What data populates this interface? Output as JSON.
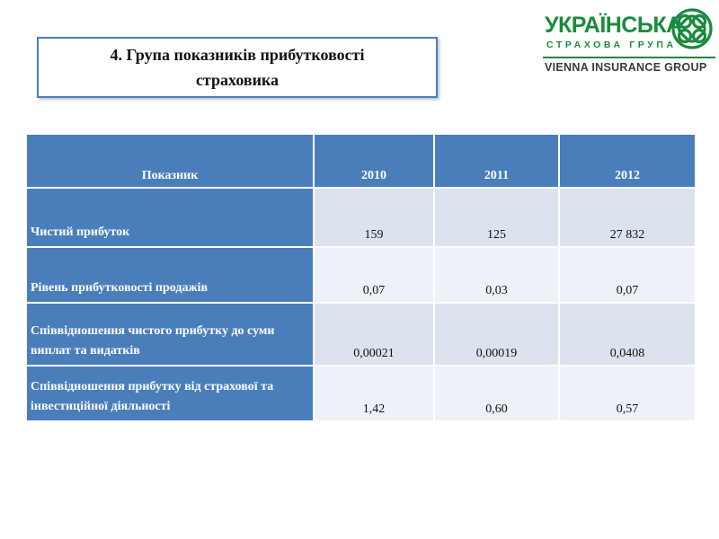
{
  "title": {
    "line1": "4. Група показників прибутковості",
    "line2": "страховика"
  },
  "logo": {
    "name": "УКРАЇНСЬКА",
    "subtitle": "СТРАХОВА ГРУПА",
    "group": "VIENNA INSURANCE GROUP",
    "colors": {
      "brand_green": "#1a8a3e",
      "group_gray": "#3a3a3a"
    }
  },
  "table": {
    "headers": [
      "Показник",
      "2010",
      "2011",
      "2012"
    ],
    "rows": [
      {
        "label": "Чистий  прибуток",
        "values": [
          "159",
          "125",
          "27 832"
        ]
      },
      {
        "label": "Рівень прибутковості  продажів",
        "values": [
          "0,07",
          "0,03",
          "0,07"
        ]
      },
      {
        "label": "Співвідношення  чистого прибутку  до суми виплат  та  видатків",
        "values": [
          "0,00021",
          "0,00019",
          "0,0408"
        ]
      },
      {
        "label": "Співвідношення  прибутку  від страхової та інвестиційної  діяльності",
        "values": [
          "1,42",
          "0,60",
          "0,57"
        ]
      }
    ],
    "colors": {
      "header_bg": "#4a7ebb",
      "row_a": "#dde3ee",
      "row_b": "#eef1f7"
    }
  }
}
